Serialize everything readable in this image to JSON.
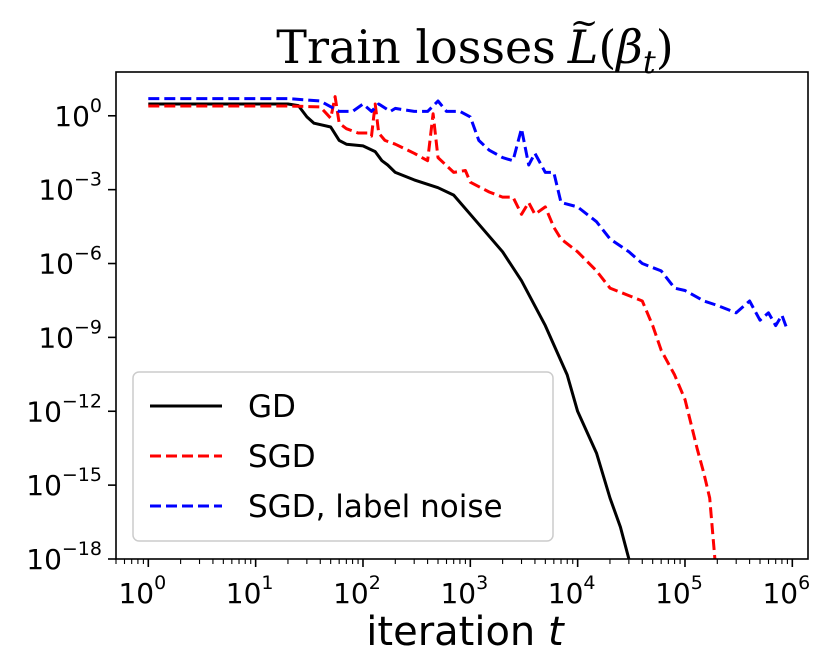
{
  "chart_data": {
    "type": "line",
    "title": "Train losses",
    "title_math": {
      "L": "L",
      "tilde": "~",
      "open": "(",
      "beta": "β",
      "sub": "t",
      "close": ")"
    },
    "xlabel": "iteration",
    "xlabel_var": "t",
    "xscale": "log",
    "yscale": "log",
    "xlim": [
      0.5,
      1400000
    ],
    "ylim": [
      1e-18,
      60
    ],
    "xticks": [
      {
        "base": "10",
        "exp": "0",
        "value": 1
      },
      {
        "base": "10",
        "exp": "1",
        "value": 10
      },
      {
        "base": "10",
        "exp": "2",
        "value": 100
      },
      {
        "base": "10",
        "exp": "3",
        "value": 1000
      },
      {
        "base": "10",
        "exp": "4",
        "value": 10000
      },
      {
        "base": "10",
        "exp": "5",
        "value": 100000
      },
      {
        "base": "10",
        "exp": "6",
        "value": 1000000
      }
    ],
    "yticks": [
      {
        "base": "10",
        "exp": "0",
        "value": 1
      },
      {
        "base": "10",
        "exp": "−3",
        "value": 0.001
      },
      {
        "base": "10",
        "exp": "−6",
        "value": 1e-06
      },
      {
        "base": "10",
        "exp": "−9",
        "value": 1e-09
      },
      {
        "base": "10",
        "exp": "−12",
        "value": 1e-12
      },
      {
        "base": "10",
        "exp": "−15",
        "value": 1e-15
      },
      {
        "base": "10",
        "exp": "−18",
        "value": 1e-18
      }
    ],
    "legend_position": "lower-left",
    "series": [
      {
        "name": "GD",
        "color": "#000000",
        "style": "solid",
        "x": [
          1,
          10,
          20,
          25,
          30,
          35,
          50,
          60,
          70,
          100,
          130,
          150,
          170,
          200,
          300,
          500,
          700,
          1000,
          2000,
          3000,
          5000,
          8000,
          10000,
          15000,
          20000,
          25000,
          30000
        ],
        "y": [
          3,
          3,
          3,
          2.6,
          0.9,
          0.5,
          0.35,
          0.1,
          0.07,
          0.06,
          0.035,
          0.015,
          0.01,
          0.005,
          0.0025,
          0.0012,
          0.0006,
          0.0001,
          3e-06,
          2e-07,
          3e-09,
          3e-11,
          1e-12,
          2e-14,
          3e-16,
          2e-17,
          1e-18
        ]
      },
      {
        "name": "SGD",
        "color": "#ff0000",
        "style": "dashed",
        "x": [
          1,
          10,
          20,
          40,
          50,
          55,
          60,
          70,
          90,
          110,
          120,
          130,
          140,
          160,
          200,
          300,
          400,
          450,
          500,
          700,
          900,
          1000,
          1500,
          2000,
          2500,
          3000,
          3500,
          4000,
          5000,
          6000,
          7000,
          10000,
          15000,
          20000,
          30000,
          40000,
          50000,
          60000,
          80000,
          100000,
          130000,
          150000,
          170000,
          190000
        ],
        "y": [
          2.5,
          2.5,
          2.5,
          2.3,
          0.8,
          6,
          0.5,
          0.3,
          0.2,
          0.2,
          0.15,
          3,
          0.2,
          0.1,
          0.07,
          0.03,
          0.015,
          1.2,
          0.02,
          0.005,
          0.006,
          0.002,
          0.0008,
          0.0005,
          0.0005,
          0.0001,
          0.0003,
          0.0001,
          0.0002,
          3e-05,
          1e-05,
          3e-06,
          5e-07,
          1e-07,
          5e-08,
          3e-08,
          3e-09,
          3e-10,
          3e-11,
          3e-12,
          3e-14,
          3e-15,
          3e-16,
          1e-18
        ]
      },
      {
        "name": "SGD, label noise",
        "color": "#0000ff",
        "style": "dashed",
        "x": [
          1,
          10,
          20,
          40,
          60,
          80,
          100,
          120,
          140,
          180,
          200,
          300,
          400,
          500,
          600,
          800,
          1000,
          1200,
          1500,
          2000,
          2500,
          3000,
          3500,
          4000,
          5000,
          6000,
          7000,
          10000,
          15000,
          20000,
          30000,
          40000,
          60000,
          80000,
          100000,
          150000,
          200000,
          300000,
          400000,
          500000,
          600000,
          700000,
          800000,
          900000
        ],
        "y": [
          5,
          5,
          5,
          4,
          1.5,
          1.5,
          3,
          1.5,
          3,
          1.5,
          2,
          1.5,
          1.5,
          4,
          1.5,
          1.5,
          0.9,
          0.1,
          0.04,
          0.02,
          0.015,
          0.3,
          0.01,
          0.03,
          0.005,
          0.005,
          0.0003,
          0.0002,
          5e-05,
          1e-05,
          3e-06,
          1e-06,
          5e-07,
          1e-07,
          8e-08,
          3e-08,
          2e-08,
          1e-08,
          3e-08,
          5e-09,
          1e-08,
          3e-09,
          8e-09,
          2e-09
        ]
      }
    ]
  }
}
